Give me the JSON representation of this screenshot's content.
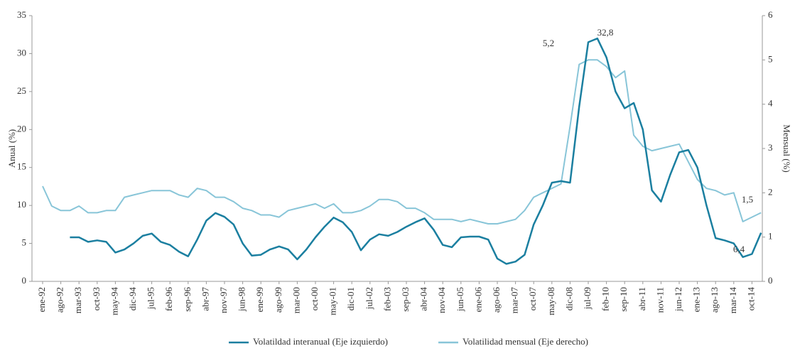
{
  "chart_data": {
    "type": "line",
    "categories": [
      "ene-92",
      null,
      "ago-92",
      null,
      "mar-93",
      null,
      "oct-93",
      null,
      "may-94",
      null,
      "dic-94",
      null,
      "jul-95",
      null,
      "feb-96",
      null,
      "sep-96",
      null,
      "abr-97",
      null,
      "nov-97",
      null,
      "jun-98",
      null,
      "ene-99",
      null,
      "ago-99",
      null,
      "mar-00",
      null,
      "oct-00",
      null,
      "may-01",
      null,
      "dic-01",
      null,
      "jul-02",
      null,
      "feb-03",
      null,
      "sep-03",
      null,
      "abr-04",
      null,
      "nov-04",
      null,
      "jun-05",
      null,
      "ene-06",
      null,
      "ago-06",
      null,
      "mar-07",
      null,
      "oct-07",
      null,
      "may-08",
      null,
      "dic-08",
      null,
      "jul-09",
      null,
      "feb-10",
      null,
      "sep-10",
      null,
      "abr-11",
      null,
      "nov-11",
      null,
      "jun-12",
      null,
      "ene-13",
      null,
      "ago-13",
      null,
      "mar-14",
      null,
      "oct-14",
      null
    ],
    "series": [
      {
        "name": "Volatildad interanual (Eje izquierdo)",
        "color": "#1b7fa0",
        "axis": "y",
        "values": [
          null,
          null,
          null,
          5.8,
          5.8,
          5.2,
          5.4,
          5.2,
          3.8,
          4.2,
          5.0,
          6.0,
          6.3,
          5.2,
          4.8,
          3.9,
          3.3,
          5.5,
          8.0,
          9.0,
          8.5,
          7.5,
          5.0,
          3.4,
          3.5,
          4.2,
          4.6,
          4.2,
          2.9,
          4.2,
          5.8,
          7.2,
          8.4,
          7.8,
          6.5,
          4.1,
          5.5,
          6.2,
          6.0,
          6.5,
          7.2,
          7.8,
          8.3,
          6.8,
          4.8,
          4.5,
          5.8,
          5.9,
          5.9,
          5.5,
          3.0,
          2.3,
          2.6,
          3.5,
          7.5,
          10.0,
          13.0,
          13.2,
          13.0,
          23.0,
          31.5,
          32.0,
          29.5,
          25.0,
          22.8,
          23.5,
          20.0,
          12.0,
          10.5,
          14.0,
          17.0,
          17.3,
          15.0,
          10.0,
          5.7,
          5.4,
          5.0,
          3.2,
          3.6,
          6.4
        ]
      },
      {
        "name": "Volatilidad mensual (Eje derecho)",
        "color": "#88c5d8",
        "axis": "y2",
        "values": [
          2.15,
          1.7,
          1.6,
          1.6,
          1.7,
          1.55,
          1.55,
          1.6,
          1.6,
          1.9,
          1.95,
          2.0,
          2.05,
          2.05,
          2.05,
          1.95,
          1.9,
          2.1,
          2.05,
          1.9,
          1.9,
          1.8,
          1.65,
          1.6,
          1.5,
          1.5,
          1.45,
          1.6,
          1.65,
          1.7,
          1.75,
          1.65,
          1.75,
          1.55,
          1.55,
          1.6,
          1.7,
          1.85,
          1.85,
          1.8,
          1.65,
          1.65,
          1.55,
          1.4,
          1.4,
          1.4,
          1.35,
          1.4,
          1.35,
          1.3,
          1.3,
          1.35,
          1.4,
          1.6,
          1.9,
          2.0,
          2.1,
          2.2,
          3.5,
          4.9,
          5.0,
          5.0,
          4.85,
          4.6,
          4.75,
          3.3,
          3.05,
          2.95,
          3.0,
          3.05,
          3.1,
          2.7,
          2.3,
          2.1,
          2.05,
          1.95,
          2.0,
          1.35,
          1.45,
          1.55
        ]
      }
    ],
    "ylabel": "Anual (%)",
    "y2label": "Mensual (%)",
    "ylim": [
      0,
      35
    ],
    "yticks": [
      0,
      5,
      10,
      15,
      20,
      25,
      30,
      35
    ],
    "y2lim": [
      0,
      6
    ],
    "y2ticks": [
      0,
      1,
      2,
      3,
      4,
      5,
      6
    ],
    "annotations": [
      "5,2",
      "32,8",
      "1,5",
      "6,4"
    ],
    "legend": "bottom"
  }
}
